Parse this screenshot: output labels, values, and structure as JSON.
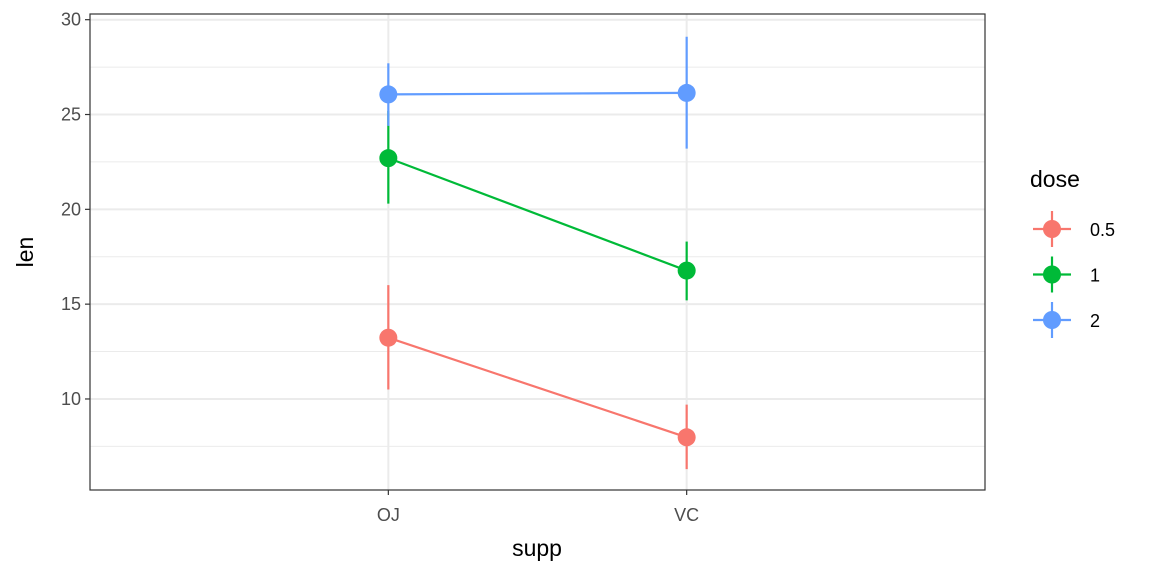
{
  "chart_data": {
    "type": "line",
    "xlabel": "supp",
    "ylabel": "len",
    "categories": [
      "OJ",
      "VC"
    ],
    "ylim": [
      5.2,
      30.3
    ],
    "y_ticks": [
      10,
      15,
      20,
      25,
      30
    ],
    "grid": true,
    "legend": {
      "title": "dose",
      "position": "right"
    },
    "series": [
      {
        "name": "0.5",
        "color": "#F8766D",
        "values": [
          13.23,
          7.98
        ],
        "lower": [
          10.5,
          6.3
        ],
        "upper": [
          16.0,
          9.7
        ]
      },
      {
        "name": "1",
        "color": "#00BA38",
        "values": [
          22.7,
          16.77
        ],
        "lower": [
          20.3,
          15.2
        ],
        "upper": [
          25.2,
          18.3
        ]
      },
      {
        "name": "2",
        "color": "#619CFF",
        "values": [
          26.06,
          26.14
        ],
        "lower": [
          24.4,
          23.2
        ],
        "upper": [
          27.7,
          29.1
        ]
      }
    ]
  }
}
